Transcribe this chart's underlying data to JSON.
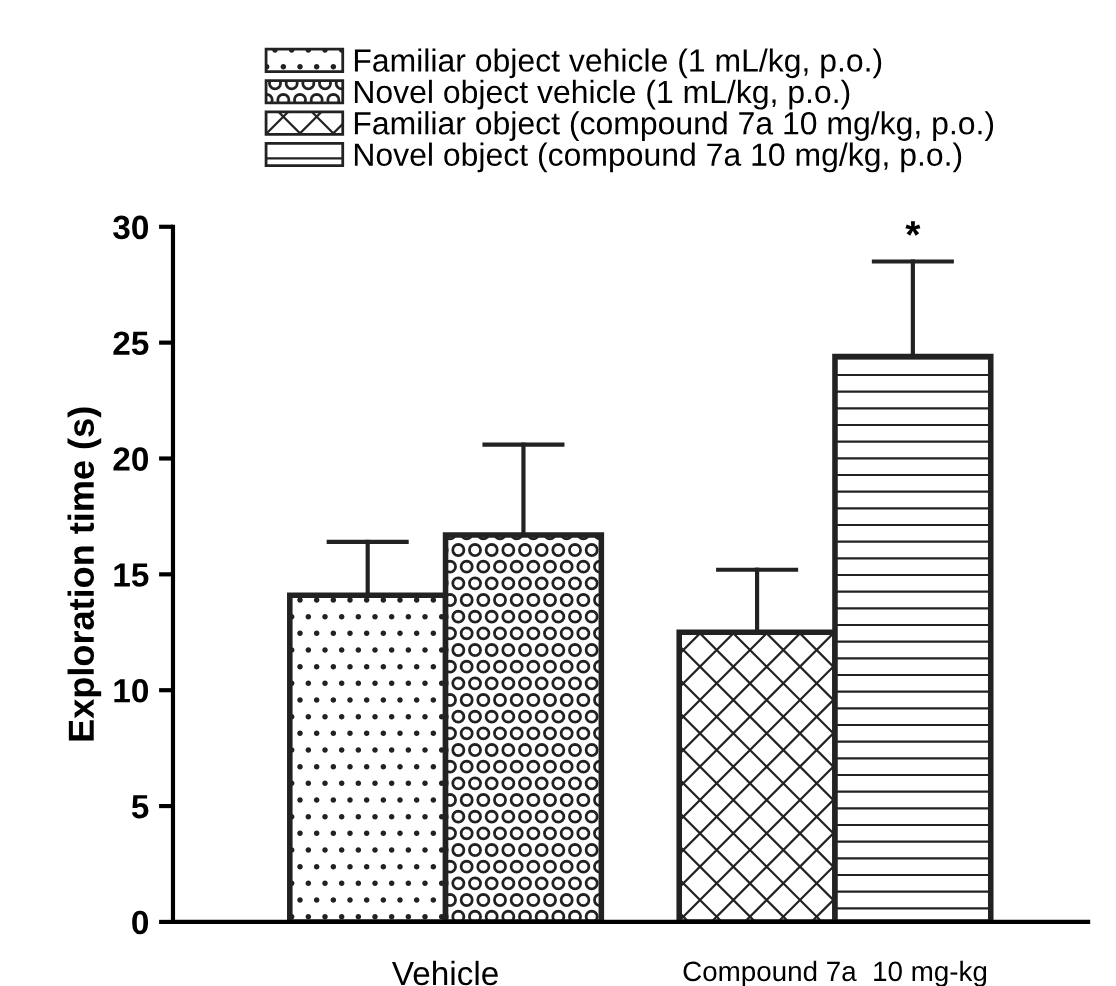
{
  "chart_data": {
    "type": "bar",
    "ylabel": "Exploration time (s)",
    "categories": [
      "Vehicle",
      "Compound 7a  10 mg-kg"
    ],
    "series": [
      {
        "name": "Familiar object vehicle (1 mL/kg, p.o.)",
        "color": "#222222",
        "values": [
          14.1,
          null
        ],
        "errors": [
          [
            14.1,
            16.4
          ],
          null
        ]
      },
      {
        "name": "Novel object vehicle (1 mL/kg, p.o.)",
        "color": "#222222",
        "values": [
          16.7,
          null
        ],
        "errors": [
          [
            16.7,
            20.6
          ],
          null
        ]
      },
      {
        "name": "Familiar object (compound 7a 10 mg/kg, p.o.)",
        "color": "#222222",
        "values": [
          null,
          12.5
        ],
        "errors": [
          null,
          [
            12.5,
            15.2
          ]
        ]
      },
      {
        "name": "Novel object (compound 7a 10 mg/kg, p.o.)",
        "color": "#222222",
        "values": [
          null,
          24.4
        ],
        "errors": [
          null,
          [
            24.4,
            28.5
          ]
        ]
      }
    ],
    "annotations": [
      "*"
    ],
    "ylim": [
      0,
      30
    ],
    "yticks": [
      0,
      5,
      10,
      15,
      20,
      25,
      30
    ],
    "grid": false,
    "legend": "top"
  }
}
